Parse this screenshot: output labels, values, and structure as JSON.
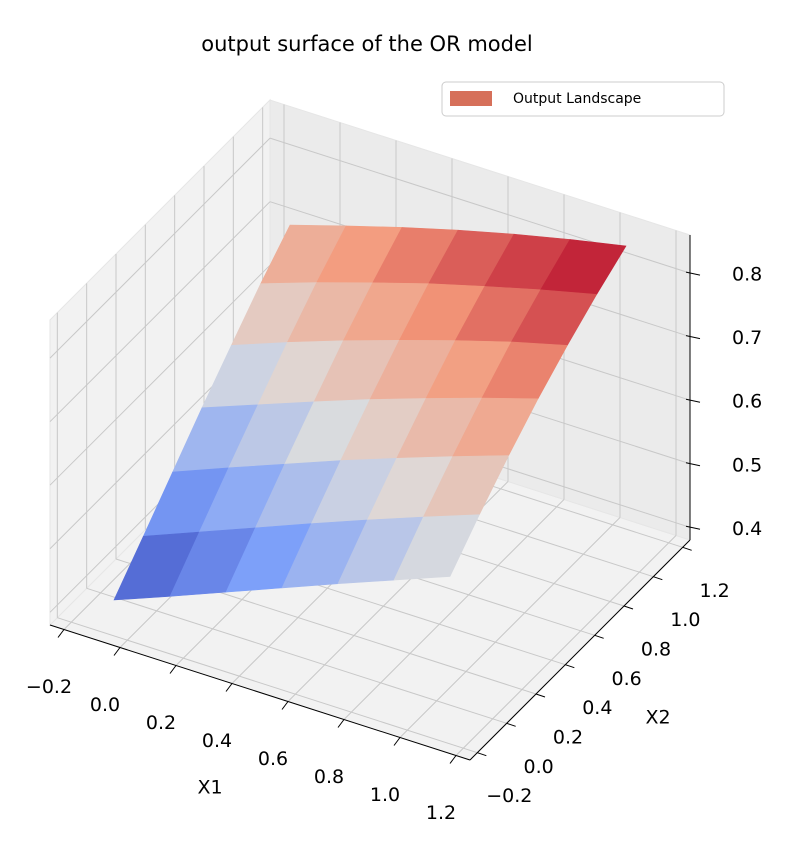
{
  "chart_data": {
    "type": "surface",
    "title": "output surface of the OR model",
    "name": "Output Landscape",
    "legend": "upper right",
    "legend_color": "#d6705a",
    "xlabel": "X1",
    "ylabel": "X2",
    "colormap": "coolwarm",
    "x": [
      -0.1,
      0.1,
      0.3,
      0.5,
      0.7,
      0.9,
      1.1
    ],
    "y": [
      -0.1,
      0.1,
      0.3,
      0.5,
      0.7,
      0.9,
      1.1
    ],
    "z": [
      [
        0.406,
        0.44,
        0.475,
        0.51,
        0.545,
        0.579,
        0.613
      ],
      [
        0.46,
        0.495,
        0.53,
        0.565,
        0.599,
        0.632,
        0.664
      ],
      [
        0.515,
        0.55,
        0.584,
        0.618,
        0.65,
        0.681,
        0.711
      ],
      [
        0.57,
        0.603,
        0.636,
        0.668,
        0.698,
        0.727,
        0.754
      ],
      [
        0.622,
        0.655,
        0.686,
        0.715,
        0.743,
        0.769,
        0.792
      ],
      [
        0.673,
        0.703,
        0.731,
        0.758,
        0.782,
        0.805,
        0.826
      ],
      [
        0.719,
        0.746,
        0.772,
        0.796,
        0.818,
        0.838,
        0.856
      ]
    ],
    "xlim": [
      -0.25,
      1.25
    ],
    "ylim": [
      -0.25,
      1.25
    ],
    "zlim": [
      0.38,
      0.86
    ],
    "xticks": [
      {
        "value": -0.2,
        "label": "−0.2"
      },
      {
        "value": 0,
        "label": "0.0"
      },
      0.2,
      0.4,
      0.6,
      0.8,
      {
        "value": 1,
        "label": "1.0"
      },
      1.2
    ],
    "yticks": [
      {
        "value": -0.2,
        "label": "−0.2"
      },
      {
        "value": 0,
        "label": "0.0"
      },
      0.2,
      0.4,
      0.6,
      0.8,
      {
        "value": 1,
        "label": "1.0"
      },
      1.2
    ],
    "zticks": [
      0.4,
      0.5,
      0.6,
      0.7,
      0.8
    ]
  }
}
